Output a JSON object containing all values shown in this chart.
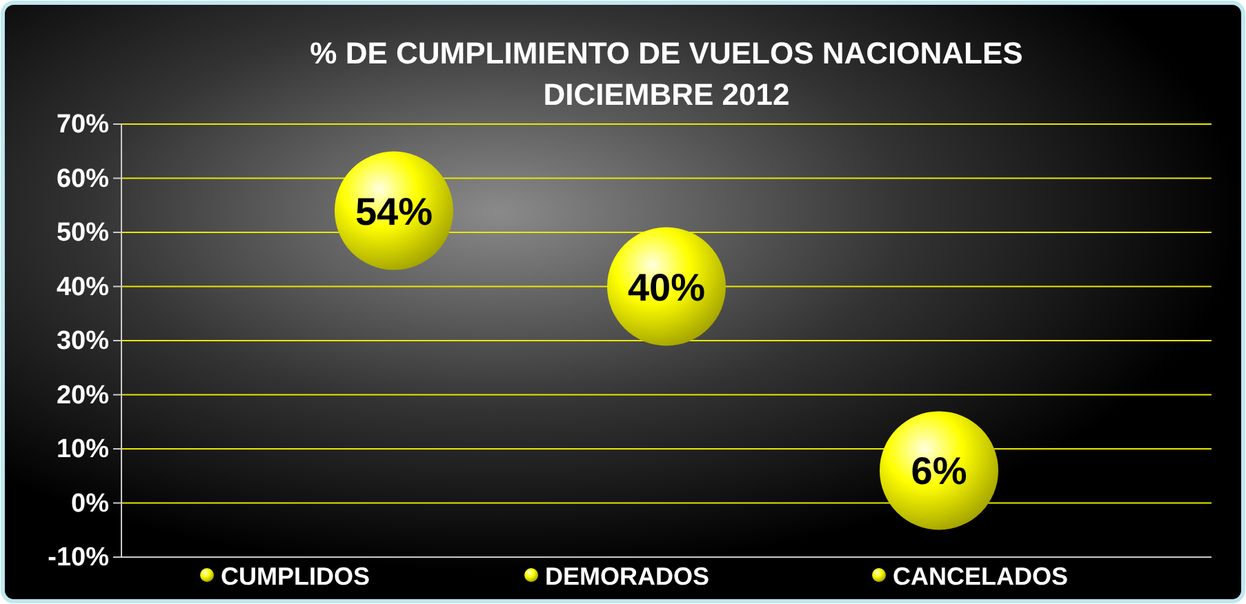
{
  "chart_data": {
    "type": "bubble",
    "title": "%  DE CUMPLIMIENTO DE VUELOS NACIONALES\nDICIEMBRE 2012",
    "categories": [
      null,
      null,
      null
    ],
    "series": [
      {
        "name": "CUMPLIDOS",
        "color": "#ffff00",
        "values": [
          54,
          null,
          null
        ],
        "sizes": [
          1,
          null,
          null
        ],
        "value_labels": [
          "54%",
          null,
          null
        ]
      },
      {
        "name": "DEMORADOS",
        "color": "#ffff00",
        "values": [
          null,
          40,
          null
        ],
        "sizes": [
          null,
          1,
          null
        ],
        "value_labels": [
          null,
          "40%",
          null
        ]
      },
      {
        "name": "CANCELADOS",
        "color": "#ffff00",
        "values": [
          null,
          null,
          6
        ],
        "sizes": [
          null,
          null,
          1
        ],
        "value_labels": [
          null,
          null,
          "6%"
        ]
      }
    ],
    "ylim": [
      -10,
      70
    ],
    "yticks": [
      {
        "value": -10,
        "label": "-10%"
      },
      {
        "value": 0,
        "label": "0%"
      },
      {
        "value": 10,
        "label": "10%"
      },
      {
        "value": 20,
        "label": "20%"
      },
      {
        "value": 30,
        "label": "30%"
      },
      {
        "value": 40,
        "label": "40%"
      },
      {
        "value": 50,
        "label": "50%"
      },
      {
        "value": 60,
        "label": "60%"
      },
      {
        "value": 70,
        "label": "70%"
      }
    ],
    "grid": "y",
    "legend": "bottom"
  }
}
